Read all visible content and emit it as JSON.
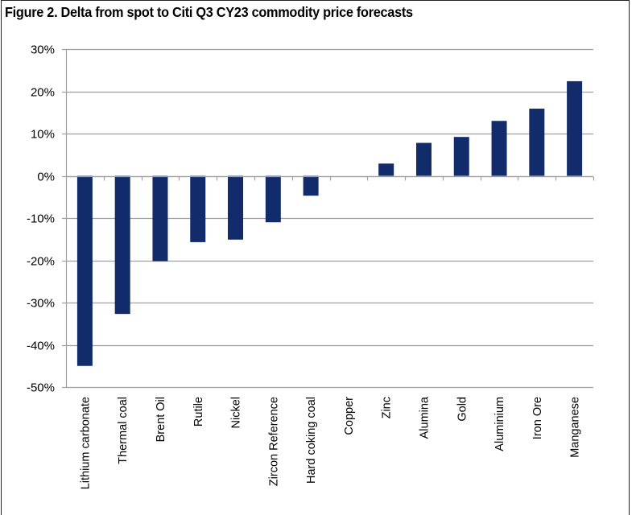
{
  "figure": {
    "title": "Figure 2. Delta from spot to Citi Q3 CY23 commodity price forecasts"
  },
  "colors": {
    "bar": "#122c6b",
    "grid": "#a0a0a0",
    "border": "#222222"
  },
  "chart_data": {
    "type": "bar",
    "title": "Figure 2. Delta from spot to Citi Q3 CY23 commodity price forecasts",
    "xlabel": "",
    "ylabel": "",
    "categories": [
      "Lithium carbonate",
      "Thermal coal",
      "Brent Oil",
      "Rutile",
      "Nickel",
      "Zircon Reference",
      "Hard coking coal",
      "Copper",
      "Zinc",
      "Alumina",
      "Gold",
      "Aluminium",
      "Iron Ore",
      "Manganese"
    ],
    "values": [
      -45.0,
      -32.7,
      -20.2,
      -15.7,
      -15.1,
      -11.0,
      -4.7,
      0.0,
      2.9,
      7.8,
      9.2,
      13.0,
      15.9,
      22.4
    ],
    "unit": "%",
    "ylim": [
      -50,
      30
    ],
    "yticks": [
      30,
      20,
      10,
      0,
      -10,
      -20,
      -30,
      -40,
      -50
    ],
    "ytick_labels": [
      "30%",
      "20%",
      "10%",
      "0%",
      "-10%",
      "-20%",
      "-30%",
      "-40%",
      "-50%"
    ],
    "grid": true,
    "legend": "none"
  }
}
